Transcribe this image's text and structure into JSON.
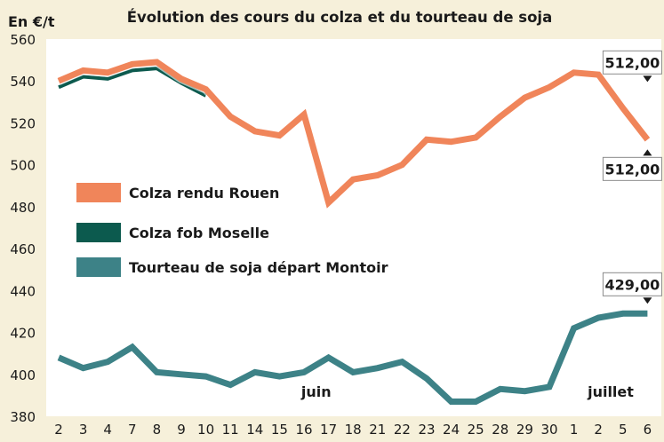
{
  "chart_data": {
    "type": "line",
    "title": "Évolution des cours du colza et du tourteau de soja",
    "ylabel": "En €/t",
    "xlabel": "",
    "ylim": [
      380,
      560
    ],
    "yticks": [
      "380",
      "400",
      "420",
      "440",
      "460",
      "480",
      "500",
      "520",
      "540",
      "560"
    ],
    "grid": false,
    "legend_position": "left-center",
    "categories": [
      "2",
      "3",
      "4",
      "7",
      "8",
      "9",
      "10",
      "11",
      "14",
      "15",
      "16",
      "17",
      "18",
      "21",
      "22",
      "23",
      "24",
      "25",
      "28",
      "29",
      "30",
      "1",
      "2",
      "5",
      "6"
    ],
    "month_labels": [
      {
        "text": "juin",
        "at": 10.5
      },
      {
        "text": "juillet",
        "at": 22.5
      }
    ],
    "series": [
      {
        "name": "Colza rendu Rouen",
        "color": "#f0855a",
        "values": [
          540,
          545,
          544,
          548,
          549,
          541,
          536,
          523,
          516,
          514,
          524,
          482,
          493,
          495,
          500,
          512,
          511,
          513,
          523,
          532,
          537,
          544,
          543,
          527,
          512
        ]
      },
      {
        "name": "Colza fob Moselle",
        "color": "#0c5a4e",
        "values": [
          537,
          542,
          541,
          545,
          546,
          539,
          533,
          null,
          null,
          null,
          null,
          null,
          null,
          null,
          null,
          null,
          null,
          null,
          null,
          null,
          null,
          null,
          null,
          null,
          null
        ]
      },
      {
        "name": "Tourteau de soja départ Montoir",
        "color": "#3d8287",
        "values": [
          408,
          403,
          406,
          413,
          401,
          400,
          399,
          395,
          401,
          399,
          401,
          408,
          401,
          403,
          406,
          398,
          387,
          387,
          393,
          392,
          394,
          422,
          427,
          429,
          429
        ]
      }
    ],
    "callouts": [
      {
        "text": "512,00",
        "series": 0,
        "index": 24,
        "side": "above"
      },
      {
        "text": "512,00",
        "series": 0,
        "index": 24,
        "side": "below"
      },
      {
        "text": "429,00",
        "series": 2,
        "index": 24,
        "side": "above"
      }
    ]
  }
}
